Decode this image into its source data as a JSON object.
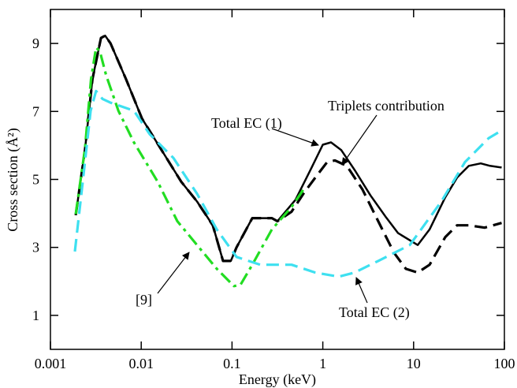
{
  "chart_data": {
    "type": "line",
    "x_label": "Energy (keV)",
    "y_label": "Cross section (Å²)",
    "xlog": true,
    "xlim": [
      0.001,
      100
    ],
    "xticks": [
      0.001,
      0.01,
      0.1,
      1,
      10,
      100
    ],
    "ylim": [
      0,
      10
    ],
    "yticks": [
      1,
      3,
      5,
      7,
      9
    ],
    "annotations": [
      "Total EC (1)",
      "Triplets contribution",
      "[9]",
      "Total EC (2)"
    ],
    "series": [
      {
        "name": "Total EC (1)",
        "color": "#000000",
        "style": "solid",
        "x": [
          0.0019,
          0.0024,
          0.0029,
          0.0036,
          0.004,
          0.0046,
          0.0068,
          0.0102,
          0.0276,
          0.0412,
          0.0614,
          0.0796,
          0.097,
          0.112,
          0.167,
          0.275,
          0.316,
          0.5,
          0.747,
          1.0,
          1.23,
          1.6,
          2.24,
          3.35,
          4.99,
          6.74,
          11.1,
          15.0,
          22.3,
          30.1,
          40.6,
          54.9,
          69.4,
          93.3
        ],
        "values": [
          3.95,
          5.86,
          7.95,
          9.16,
          9.23,
          9.0,
          7.95,
          6.79,
          4.93,
          4.35,
          3.65,
          2.6,
          2.6,
          3.0,
          3.86,
          3.86,
          3.77,
          4.4,
          5.33,
          6.02,
          6.09,
          5.86,
          5.28,
          4.53,
          3.88,
          3.42,
          3.07,
          3.53,
          4.47,
          5.05,
          5.4,
          5.47,
          5.4,
          5.35
        ]
      },
      {
        "name": "Triplets contribution",
        "color": "#000000",
        "style": "dashed",
        "x": [
          0.0019,
          0.0024,
          0.0029,
          0.0036,
          0.004,
          0.0046,
          0.0068,
          0.0102,
          0.0276,
          0.0412,
          0.0614,
          0.0796,
          0.097,
          0.112,
          0.167,
          0.275,
          0.316,
          0.453,
          0.611,
          0.825,
          1.11,
          1.36,
          1.84,
          2.74,
          4.08,
          6.09,
          8.22,
          11.1,
          15.0,
          22.3,
          30.1,
          40.6,
          60.6,
          93.3
        ],
        "values": [
          3.95,
          5.86,
          7.95,
          9.16,
          9.23,
          9.0,
          7.95,
          6.79,
          4.93,
          4.35,
          3.65,
          2.6,
          2.6,
          3.0,
          3.86,
          3.86,
          3.77,
          4.05,
          4.58,
          5.05,
          5.5,
          5.56,
          5.4,
          4.7,
          3.77,
          2.84,
          2.37,
          2.26,
          2.49,
          3.3,
          3.65,
          3.65,
          3.58,
          3.72
        ]
      },
      {
        "name": "[9]",
        "color": "#22dd22",
        "style": "dashdot",
        "x": [
          0.0019,
          0.0024,
          0.0028,
          0.00318,
          0.0035,
          0.0041,
          0.0056,
          0.0083,
          0.0152,
          0.025,
          0.0412,
          0.068,
          0.105,
          0.124,
          0.167,
          0.275,
          0.453,
          0.611
        ],
        "values": [
          3.98,
          5.9,
          7.95,
          8.88,
          8.77,
          8.07,
          7.02,
          6.09,
          4.93,
          3.77,
          3.07,
          2.37,
          1.86,
          1.9,
          2.49,
          3.53,
          4.19,
          4.7
        ]
      },
      {
        "name": "Total EC (2)",
        "color": "#3ee0f0",
        "style": "dashed",
        "x": [
          0.00186,
          0.00227,
          0.00277,
          0.00318,
          0.00374,
          0.00457,
          0.0083,
          0.0124,
          0.0226,
          0.0412,
          0.068,
          0.112,
          0.204,
          0.453,
          0.825,
          1.5,
          2.24,
          4.08,
          9.08,
          20.2,
          36.8,
          67.0,
          93.3
        ],
        "values": [
          2.88,
          4.93,
          7.02,
          7.6,
          7.37,
          7.26,
          7.02,
          6.33,
          5.63,
          4.58,
          3.53,
          2.72,
          2.49,
          2.49,
          2.26,
          2.14,
          2.26,
          2.6,
          3.07,
          4.35,
          5.51,
          6.21,
          6.44
        ]
      }
    ]
  }
}
